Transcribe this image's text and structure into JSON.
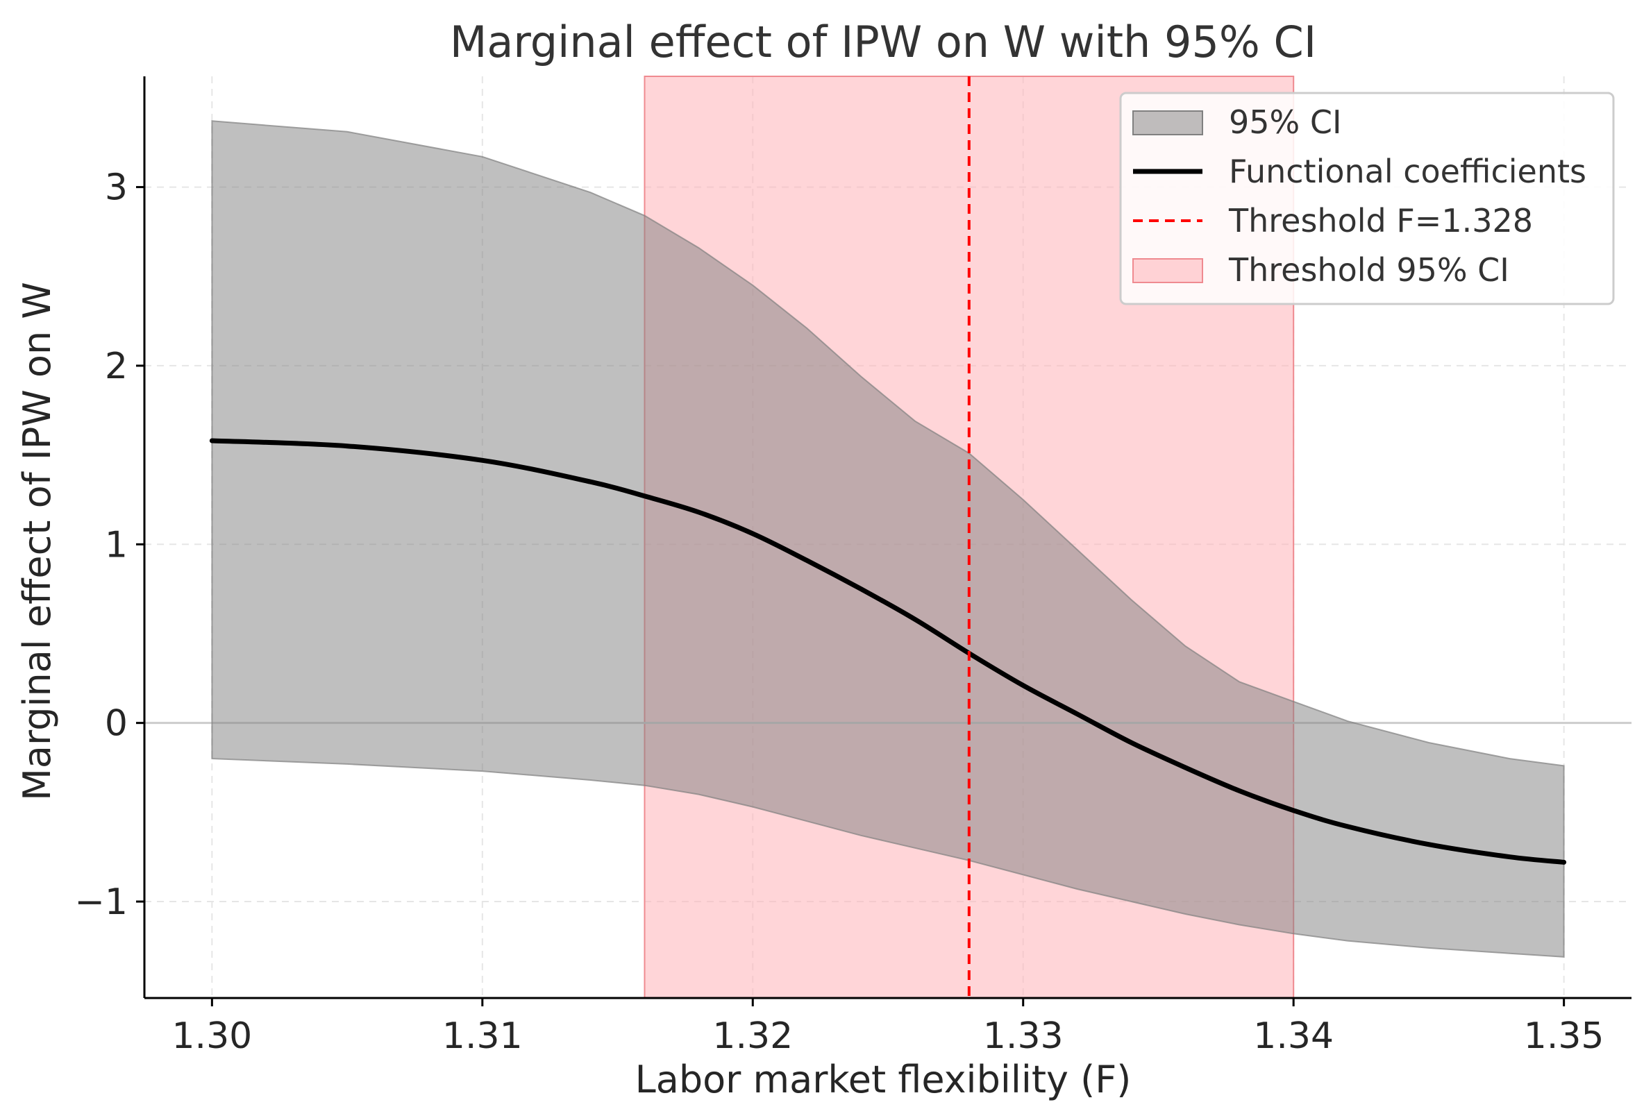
{
  "chart_data": {
    "type": "line",
    "title": "Marginal effect of IPW on W with 95% CI",
    "xlabel": "Labor market flexibility (F)",
    "ylabel": "Marginal effect of IPW on W",
    "xlim": [
      1.2975,
      1.3525
    ],
    "ylim": [
      -1.54,
      3.62
    ],
    "grid": true,
    "legend_position": "top-right",
    "x_ticks": [
      1.3,
      1.31,
      1.32,
      1.33,
      1.34,
      1.35
    ],
    "x_tick_labels": [
      "1.30",
      "1.31",
      "1.32",
      "1.33",
      "1.34",
      "1.35"
    ],
    "y_ticks": [
      -1,
      0,
      1,
      2,
      3
    ],
    "y_tick_labels": [
      "−1",
      "0",
      "1",
      "2",
      "3"
    ],
    "series": [
      {
        "name": "Functional coefficients",
        "x": [
          1.3,
          1.305,
          1.31,
          1.314,
          1.316,
          1.318,
          1.32,
          1.322,
          1.324,
          1.326,
          1.328,
          1.33,
          1.332,
          1.334,
          1.336,
          1.338,
          1.34,
          1.342,
          1.345,
          1.348,
          1.35
        ],
        "y": [
          1.58,
          1.55,
          1.47,
          1.35,
          1.27,
          1.18,
          1.06,
          0.91,
          0.75,
          0.58,
          0.39,
          0.21,
          0.05,
          -0.11,
          -0.25,
          -0.38,
          -0.49,
          -0.58,
          -0.68,
          -0.75,
          -0.78
        ]
      },
      {
        "name": "95% CI",
        "x": [
          1.3,
          1.305,
          1.31,
          1.314,
          1.316,
          1.318,
          1.32,
          1.322,
          1.324,
          1.326,
          1.328,
          1.33,
          1.332,
          1.334,
          1.336,
          1.338,
          1.34,
          1.342,
          1.345,
          1.348,
          1.35
        ],
        "lower": [
          -0.2,
          -0.23,
          -0.27,
          -0.32,
          -0.35,
          -0.4,
          -0.47,
          -0.55,
          -0.63,
          -0.7,
          -0.77,
          -0.85,
          -0.93,
          -1.0,
          -1.07,
          -1.13,
          -1.18,
          -1.22,
          -1.26,
          -1.29,
          -1.31
        ],
        "upper": [
          3.37,
          3.31,
          3.17,
          2.97,
          2.84,
          2.66,
          2.45,
          2.21,
          1.94,
          1.69,
          1.51,
          1.25,
          0.97,
          0.69,
          0.43,
          0.23,
          0.12,
          0.01,
          -0.11,
          -0.2,
          -0.24
        ]
      }
    ],
    "threshold": {
      "name": "Threshold F=1.328",
      "value": 1.328,
      "ci_name": "Threshold 95% CI",
      "ci": [
        1.316,
        1.34
      ]
    },
    "legend": [
      "95% CI",
      "Functional coefficients",
      "Threshold F=1.328",
      "Threshold 95% CI"
    ],
    "colors": {
      "line": "#000000",
      "ci_band": "#808080",
      "threshold_line": "#ff0000",
      "threshold_band": "#ffb3b8"
    }
  }
}
